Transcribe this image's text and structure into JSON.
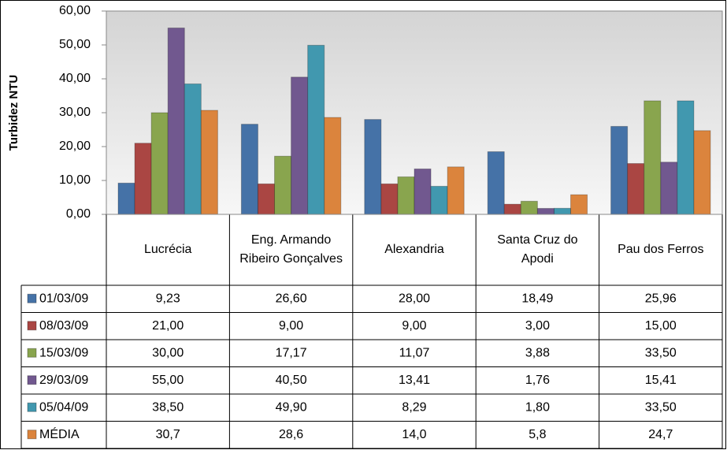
{
  "chart_data": {
    "type": "bar",
    "y_label": "Turbidez  NTU",
    "categories": [
      "Lucrécia",
      "Eng. Armando Ribeiro Gonçalves",
      "Alexandria",
      "Santa Cruz do Apodi",
      "Pau dos Ferros"
    ],
    "series": [
      {
        "name": "01/03/09",
        "color": "#4572a7",
        "values": [
          9.23,
          26.6,
          28,
          18.49,
          25.96
        ],
        "value_labels": [
          "9,23",
          "26,60",
          "28,00",
          "18,49",
          "25,96"
        ]
      },
      {
        "name": "08/03/09",
        "color": "#aa4643",
        "values": [
          21,
          9,
          9,
          3,
          15
        ],
        "value_labels": [
          "21,00",
          "9,00",
          "9,00",
          "3,00",
          "15,00"
        ]
      },
      {
        "name": "15/03/09",
        "color": "#89a54e",
        "values": [
          30,
          17.17,
          11.07,
          3.88,
          33.5
        ],
        "value_labels": [
          "30,00",
          "17,17",
          "11,07",
          "3,88",
          "33,50"
        ]
      },
      {
        "name": "29/03/09",
        "color": "#71588f",
        "values": [
          55,
          40.5,
          13.41,
          1.76,
          15.41
        ],
        "value_labels": [
          "55,00",
          "40,50",
          "13,41",
          "1,76",
          "15,41"
        ]
      },
      {
        "name": "05/04/09",
        "color": "#4198af",
        "values": [
          38.5,
          49.9,
          8.29,
          1.8,
          33.5
        ],
        "value_labels": [
          "38,50",
          "49,90",
          "8,29",
          "1,80",
          "33,50"
        ]
      },
      {
        "name": "MÉDIA",
        "color": "#db843d",
        "values": [
          30.7,
          28.6,
          14,
          5.8,
          24.7
        ],
        "value_labels": [
          "30,7",
          "28,6",
          "14,0",
          "5,8",
          "24,7"
        ]
      }
    ],
    "ylim": [
      0,
      60
    ],
    "yticks": [
      {
        "value": 0,
        "label": "0,00"
      },
      {
        "value": 10,
        "label": "10,00"
      },
      {
        "value": 20,
        "label": "20,00"
      },
      {
        "value": 30,
        "label": "30,00"
      },
      {
        "value": 40,
        "label": "40,00"
      },
      {
        "value": 50,
        "label": "50,00"
      },
      {
        "value": 60,
        "label": "60,00"
      }
    ],
    "grid": false
  }
}
